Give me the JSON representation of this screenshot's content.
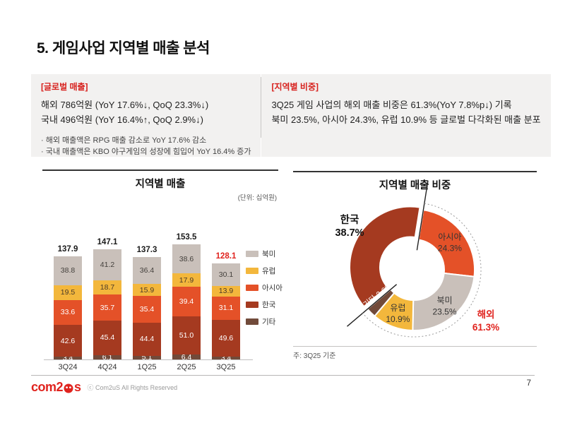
{
  "slide": {
    "title": "5. 게임사업 지역별 매출 분석",
    "page_number": "7"
  },
  "info_panel": {
    "global": {
      "heading": "[글로벌 매출]",
      "line1": "해외 786억원 (YoY 17.6%↓, QoQ 23.3%↓)",
      "line2": "국내 496억원 (YoY 16.4%↑, QoQ 2.9%↓)",
      "bullet1": "· 해외 매출액은 RPG 매출 감소로 YoY 17.6% 감소",
      "bullet2": "· 국내 매출액은 KBO 야구게임의 성장에 힘입어 YoY 16.4% 증가"
    },
    "regional": {
      "heading": "[지역별 비중]",
      "line1": "3Q25 게임 사업의 해외 매출 비중은 61.3%(YoY 7.8%p↓) 기록",
      "line2": "북미 23.5%, 아시아 24.3%, 유럽 10.9% 등 글로벌 다각화된 매출 분포"
    }
  },
  "colors": {
    "accent_red": "#e0231e",
    "north_america": "#c9c0ba",
    "europe": "#f3b73c",
    "asia": "#e45128",
    "korea": "#a53a20",
    "etc": "#714a3a"
  },
  "chart_data": [
    {
      "type": "bar",
      "title": "지역별 매출",
      "unit_label": "(단위: 십억원)",
      "categories": [
        "3Q24",
        "4Q24",
        "1Q25",
        "2Q25",
        "3Q25"
      ],
      "totals": [
        "137.9",
        "147.1",
        "137.3",
        "153.5",
        "128.1"
      ],
      "total_highlight_index": 4,
      "stack_order": "bottom to top",
      "series": [
        {
          "name": "기타",
          "color": "#714a3a",
          "text": "#ffffff",
          "values": [
            3.4,
            6.1,
            5.1,
            6.4,
            3.4
          ],
          "labels": [
            "3.4",
            "6.1",
            "5.1",
            "6.4",
            "3.4"
          ]
        },
        {
          "name": "한국",
          "color": "#a53a20",
          "text": "#ffffff",
          "values": [
            42.6,
            45.4,
            44.4,
            51.0,
            49.6
          ],
          "labels": [
            "42.6",
            "45.4",
            "44.4",
            "51.0",
            "49.6"
          ]
        },
        {
          "name": "아시아",
          "color": "#e45128",
          "text": "#ffffff",
          "values": [
            33.6,
            35.7,
            35.4,
            39.4,
            31.1
          ],
          "labels": [
            "33.6",
            "35.7",
            "35.4",
            "39.4",
            "31.1"
          ]
        },
        {
          "name": "유럽",
          "color": "#f3b73c",
          "text": "#4a3a28",
          "values": [
            19.5,
            18.7,
            15.9,
            17.9,
            13.9
          ],
          "labels": [
            "19.5",
            "18.7",
            "15.9",
            "17.9",
            "13.9"
          ]
        },
        {
          "name": "북미",
          "color": "#c9c0ba",
          "text": "#44403c",
          "values": [
            38.8,
            41.2,
            36.4,
            38.6,
            30.1
          ],
          "labels": [
            "38.8",
            "41.2",
            "36.4",
            "38.6",
            "30.1"
          ]
        }
      ],
      "legend": [
        {
          "label": "북미",
          "color": "#c9c0ba"
        },
        {
          "label": "유럽",
          "color": "#f3b73c"
        },
        {
          "label": "아시아",
          "color": "#e45128"
        },
        {
          "label": "한국",
          "color": "#a53a20"
        },
        {
          "label": "기타",
          "color": "#714a3a"
        }
      ]
    },
    {
      "type": "donut",
      "title": "지역별 매출 비중",
      "note": "주: 3Q25 기준",
      "start_angle_deg": 9,
      "slices": [
        {
          "name": "아시아",
          "value": 24.3,
          "label": "아시아",
          "pct": "24.3%",
          "color": "#e45128",
          "label_style": "inside"
        },
        {
          "name": "북미",
          "value": 23.5,
          "label": "북미",
          "pct": "23.5%",
          "color": "#c9c0ba",
          "label_style": "inside"
        },
        {
          "name": "유럽",
          "value": 10.9,
          "label": "유럽",
          "pct": "10.9%",
          "color": "#f3b73c",
          "label_style": "inside"
        },
        {
          "name": "기타",
          "value": 2.6,
          "label": "기타 2.6%",
          "color": "#714a3a",
          "label_style": "rotated-white"
        },
        {
          "name": "한국",
          "value": 38.7,
          "label": "한국",
          "pct": "38.7%",
          "color": "#a53a20",
          "label_style": "outside-bold",
          "exploded": true
        }
      ],
      "callout": {
        "label": "해외",
        "pct": "61.3%",
        "color": "#e0231e",
        "share_of_total": 61.3
      }
    }
  ],
  "footer": {
    "logo_left": "com2",
    "logo_right": "s",
    "copyright": "ⓒ Com2uS All Rights Reserved"
  }
}
